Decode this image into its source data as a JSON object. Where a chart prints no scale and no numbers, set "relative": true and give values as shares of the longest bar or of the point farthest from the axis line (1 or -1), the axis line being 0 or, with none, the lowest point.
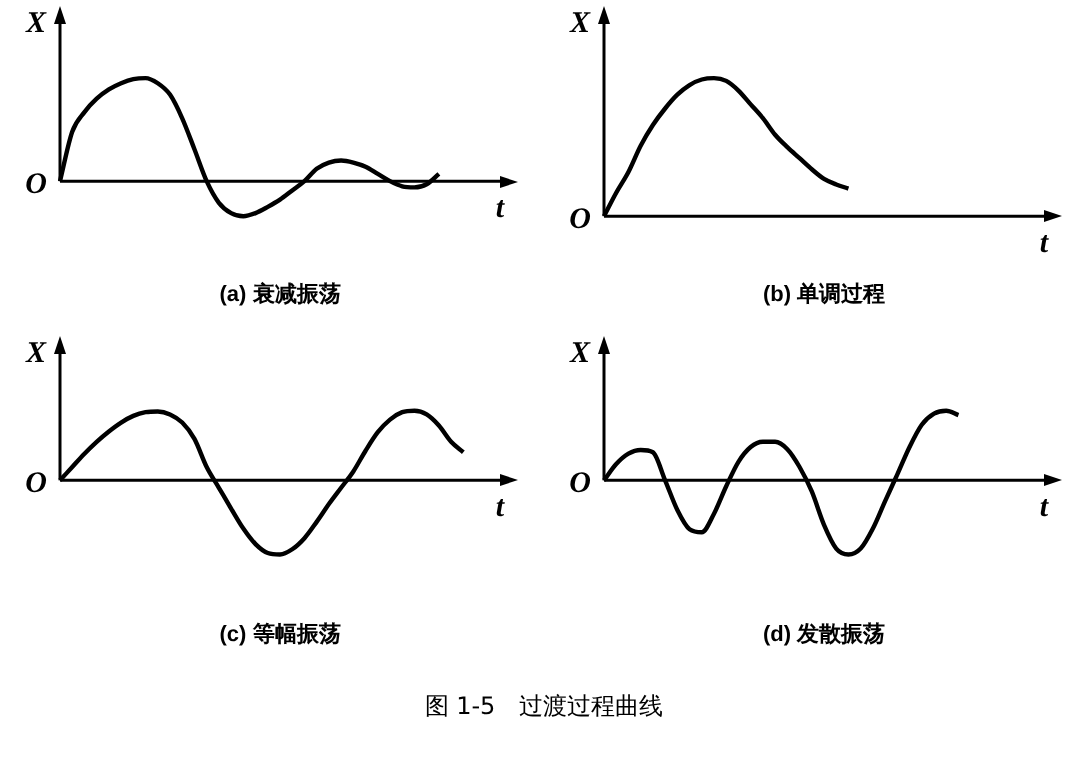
{
  "chart_data": [
    {
      "type": "line",
      "title": "(a) 衰减振荡",
      "xlabel": "t",
      "ylabel": "X",
      "annotations": [
        "O"
      ],
      "relative": true,
      "grid": false,
      "legend": false,
      "marker": "none",
      "categories": [
        null,
        null,
        null,
        null,
        null,
        null,
        null,
        null,
        null,
        null,
        null,
        null,
        null,
        null,
        null,
        null,
        null,
        null,
        null,
        null,
        null,
        null,
        null,
        null,
        null,
        null,
        null,
        null,
        null,
        null,
        null,
        null,
        null,
        null,
        null,
        null,
        null
      ],
      "series": [
        {
          "color": "#000000",
          "values": [
            0,
            0.48,
            0.67,
            0.8,
            0.89,
            0.95,
            0.99,
            1,
            0.95,
            0.84,
            0.61,
            0.31,
            0,
            -0.21,
            -0.31,
            -0.34,
            -0.31,
            -0.25,
            -0.18,
            -0.09,
            0,
            0.12,
            0.18,
            0.2,
            0.18,
            0.14,
            0.07,
            0,
            -0.05,
            -0.06,
            -0.03,
            0.07,
            null,
            null,
            null,
            null,
            null
          ]
        }
      ]
    },
    {
      "type": "line",
      "title": "(b) 单调过程",
      "xlabel": "t",
      "ylabel": "X",
      "annotations": [
        "O"
      ],
      "relative": true,
      "grid": false,
      "legend": false,
      "marker": "none",
      "categories": [
        null,
        null,
        null,
        null,
        null,
        null,
        null,
        null,
        null,
        null,
        null,
        null,
        null,
        null,
        null,
        null,
        null,
        null,
        null,
        null,
        null,
        null,
        null,
        null,
        null,
        null,
        null,
        null,
        null,
        null,
        null,
        null,
        null,
        null,
        null,
        null,
        null
      ],
      "series": [
        {
          "color": "#000000",
          "values": [
            0,
            0.17,
            0.32,
            0.51,
            0.66,
            0.78,
            0.88,
            0.95,
            0.99,
            1,
            0.98,
            0.91,
            0.81,
            0.71,
            0.59,
            0.5,
            0.42,
            0.34,
            0.27,
            0.23,
            0.2,
            null,
            null,
            null,
            null,
            null,
            null,
            null,
            null,
            null,
            null,
            null,
            null,
            null,
            null,
            null,
            null
          ]
        }
      ]
    },
    {
      "type": "line",
      "title": "(c) 等幅振荡",
      "xlabel": "t",
      "ylabel": "X",
      "annotations": [
        "O"
      ],
      "relative": true,
      "grid": false,
      "legend": false,
      "marker": "none",
      "categories": [
        null,
        null,
        null,
        null,
        null,
        null,
        null,
        null,
        null,
        null,
        null,
        null,
        null,
        null,
        null,
        null,
        null,
        null,
        null,
        null,
        null,
        null,
        null,
        null,
        null,
        null,
        null,
        null,
        null,
        null,
        null,
        null,
        null,
        null,
        null,
        null,
        null
      ],
      "series": [
        {
          "color": "#000000",
          "values": [
            0,
            0.18,
            0.36,
            0.52,
            0.66,
            0.78,
            0.87,
            0.92,
            0.93,
            0.89,
            0.78,
            0.56,
            0.18,
            -0.1,
            -0.38,
            -0.65,
            -0.86,
            -0.98,
            -1,
            -0.93,
            -0.78,
            -0.56,
            -0.32,
            -0.1,
            0.12,
            0.4,
            0.65,
            0.82,
            0.92,
            0.94,
            0.89,
            0.74,
            0.52,
            0.38,
            null,
            null,
            null
          ]
        }
      ]
    },
    {
      "type": "line",
      "title": "(d) 发散振荡",
      "xlabel": "t",
      "ylabel": "X",
      "annotations": [
        "O",
        "图 1-5　过渡过程曲线"
      ],
      "relative": true,
      "grid": false,
      "legend": false,
      "marker": "none",
      "categories": [
        null,
        null,
        null,
        null,
        null,
        null,
        null,
        null,
        null,
        null,
        null,
        null,
        null,
        null,
        null,
        null,
        null,
        null,
        null,
        null,
        null,
        null,
        null,
        null,
        null,
        null,
        null,
        null,
        null,
        null,
        null,
        null,
        null,
        null,
        null,
        null,
        null
      ],
      "series": [
        {
          "color": "#000000",
          "values": [
            0,
            0.22,
            0.36,
            0.41,
            0.38,
            0,
            -0.4,
            -0.66,
            -0.7,
            -0.45,
            -0.08,
            0.25,
            0.45,
            0.52,
            0.52,
            0.42,
            0.18,
            -0.15,
            -0.6,
            -0.92,
            -1,
            -0.92,
            -0.65,
            -0.28,
            0.08,
            0.45,
            0.75,
            0.9,
            0.94,
            0.88,
            null,
            null,
            null,
            null,
            null,
            null,
            null
          ]
        }
      ]
    }
  ]
}
